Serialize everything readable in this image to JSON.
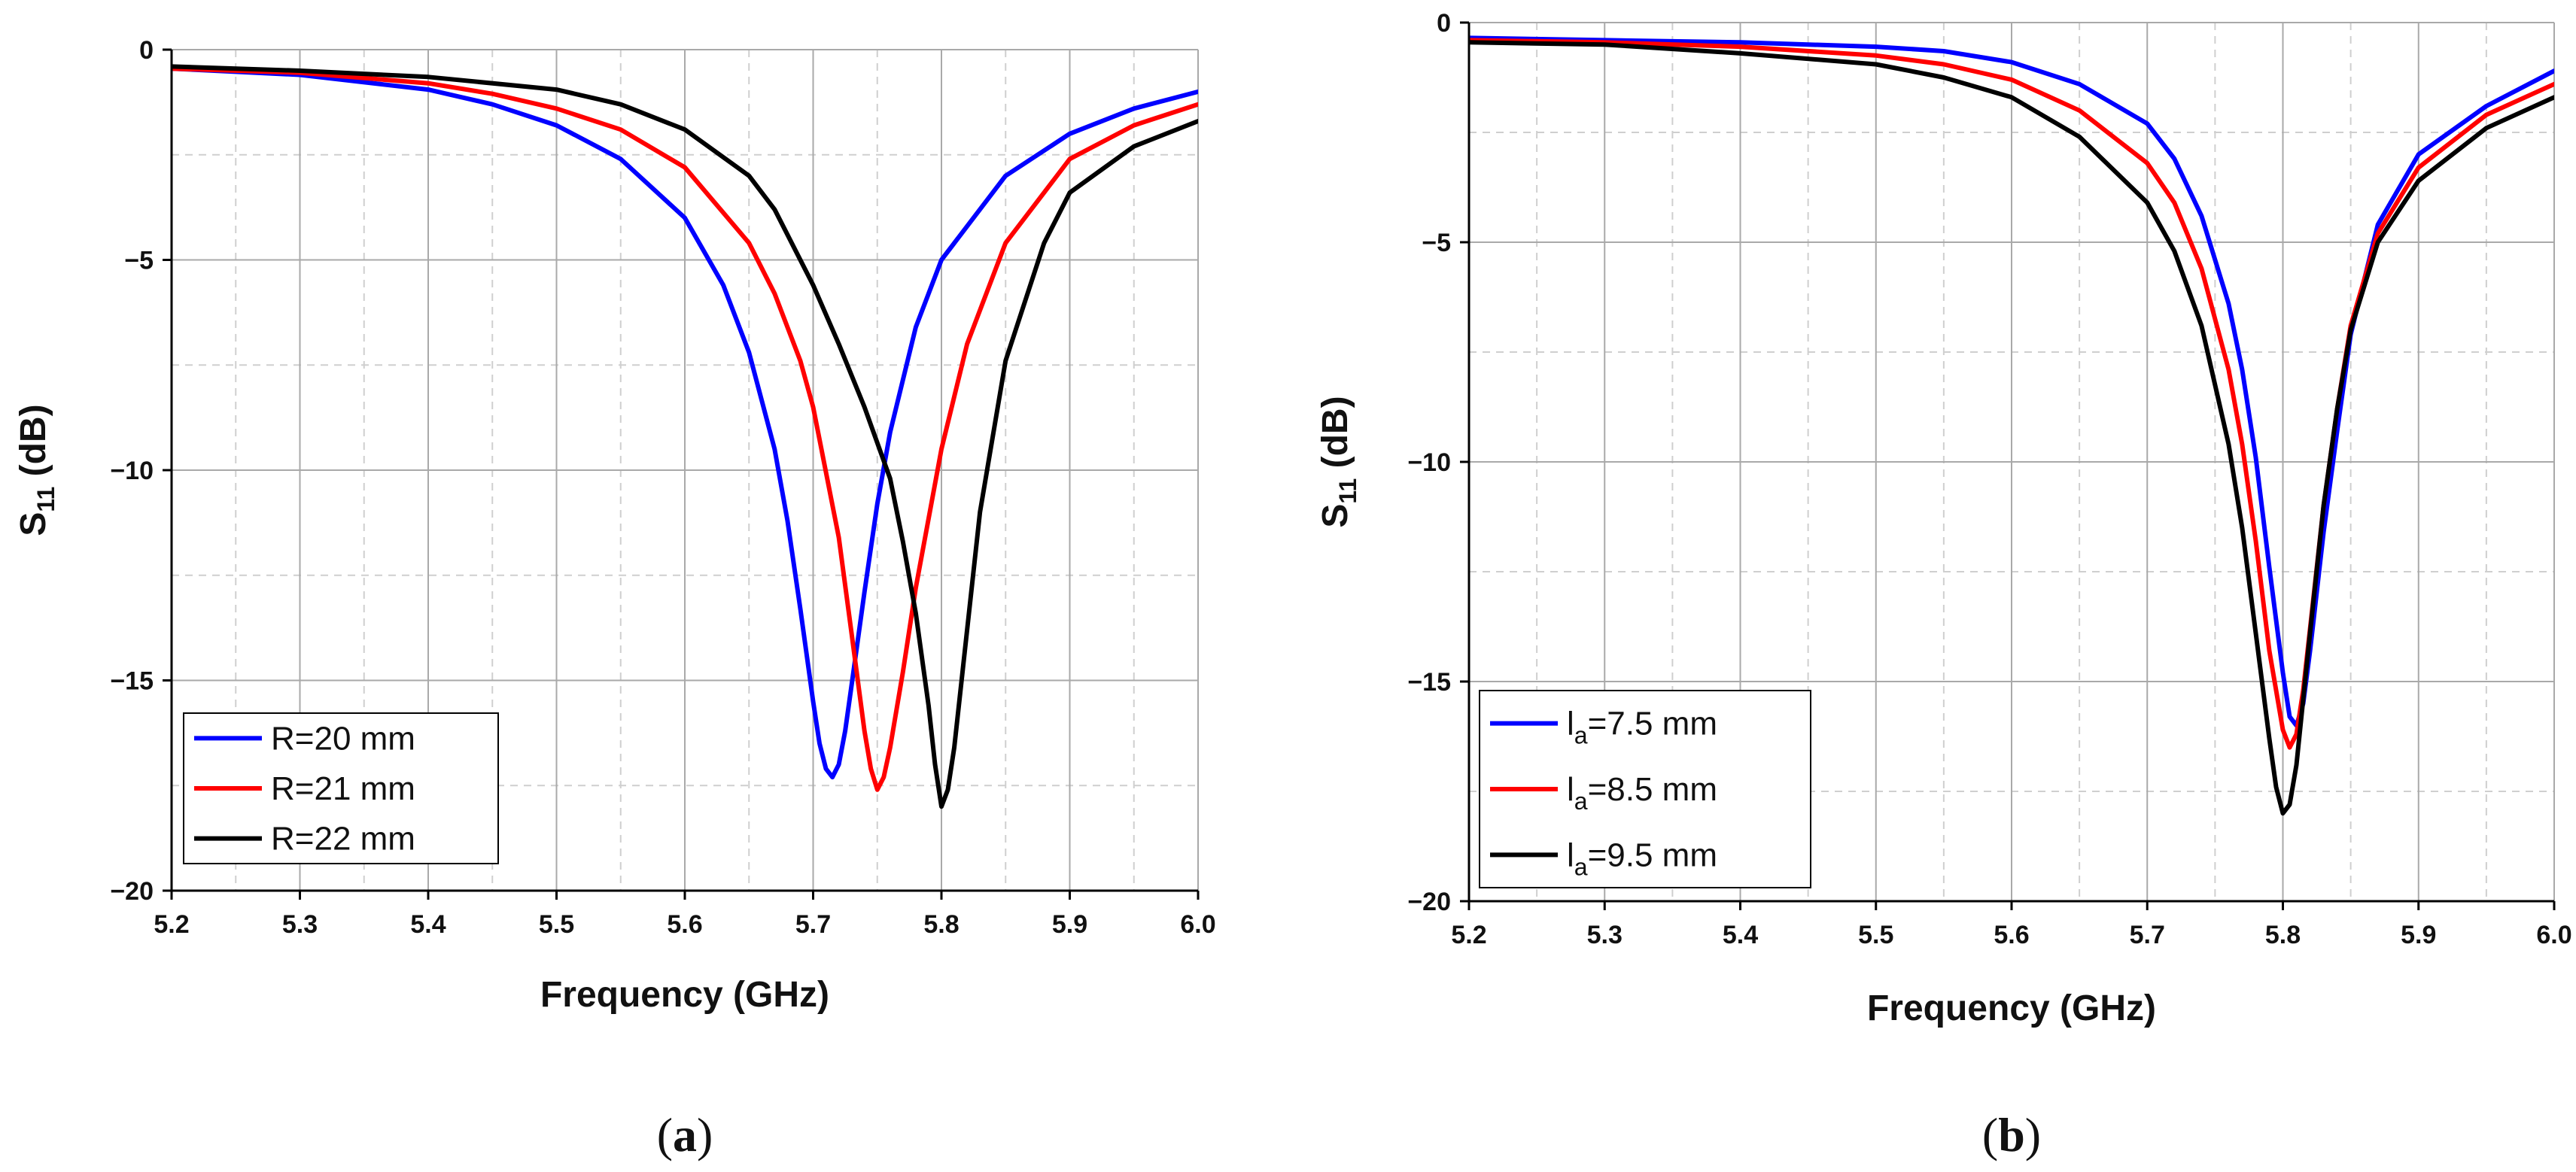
{
  "chart_data": [
    {
      "type": "line",
      "panel_label": "a",
      "title": "",
      "xlabel": "Frequency (GHz)",
      "ylabel": {
        "base": "S",
        "sub": "11",
        "rest": " (dB)"
      },
      "xlim": [
        5.2,
        6.0
      ],
      "ylim": [
        -20,
        0
      ],
      "xticks": [
        5.2,
        5.3,
        5.4,
        5.5,
        5.6,
        5.7,
        5.8,
        5.9,
        6.0
      ],
      "xtick_labels": [
        "5.2",
        "5.3",
        "5.4",
        "5.5",
        "5.6",
        "5.7",
        "5.8",
        "5.9",
        "6.0"
      ],
      "yticks": [
        0,
        -5,
        -10,
        -15,
        -20
      ],
      "ytick_labels": [
        "0",
        "−5",
        "−10",
        "−15",
        "−20"
      ],
      "grid": true,
      "legend_position": "bottom-left",
      "series": [
        {
          "name": "R=20 mm",
          "label": {
            "base": "R=20 mm",
            "sub": "",
            "rest": ""
          },
          "color": "#0000ff",
          "x": [
            5.2,
            5.3,
            5.4,
            5.45,
            5.5,
            5.55,
            5.6,
            5.63,
            5.65,
            5.67,
            5.68,
            5.69,
            5.7,
            5.705,
            5.71,
            5.715,
            5.72,
            5.725,
            5.73,
            5.74,
            5.75,
            5.76,
            5.78,
            5.8,
            5.85,
            5.9,
            5.95,
            6.0
          ],
          "y": [
            -0.45,
            -0.6,
            -0.95,
            -1.3,
            -1.8,
            -2.6,
            -4.0,
            -5.6,
            -7.2,
            -9.5,
            -11.2,
            -13.3,
            -15.5,
            -16.5,
            -17.1,
            -17.3,
            -17.0,
            -16.2,
            -15.1,
            -12.9,
            -10.8,
            -9.1,
            -6.6,
            -5.0,
            -3.0,
            -2.0,
            -1.4,
            -1.0
          ]
        },
        {
          "name": "R=21 mm",
          "label": {
            "base": "R=21 mm",
            "sub": "",
            "rest": ""
          },
          "color": "#ff0000",
          "x": [
            5.2,
            5.3,
            5.4,
            5.45,
            5.5,
            5.55,
            5.6,
            5.65,
            5.67,
            5.69,
            5.7,
            5.72,
            5.73,
            5.74,
            5.745,
            5.75,
            5.755,
            5.76,
            5.77,
            5.78,
            5.8,
            5.82,
            5.85,
            5.9,
            5.95,
            6.0
          ],
          "y": [
            -0.45,
            -0.55,
            -0.8,
            -1.05,
            -1.4,
            -1.9,
            -2.8,
            -4.6,
            -5.8,
            -7.4,
            -8.5,
            -11.6,
            -13.9,
            -16.2,
            -17.1,
            -17.6,
            -17.3,
            -16.6,
            -14.8,
            -12.8,
            -9.5,
            -7.0,
            -4.6,
            -2.6,
            -1.8,
            -1.3
          ]
        },
        {
          "name": "R=22 mm",
          "label": {
            "base": "R=22 mm",
            "sub": "",
            "rest": ""
          },
          "color": "#000000",
          "x": [
            5.2,
            5.3,
            5.4,
            5.5,
            5.55,
            5.6,
            5.65,
            5.67,
            5.7,
            5.72,
            5.74,
            5.76,
            5.77,
            5.78,
            5.79,
            5.795,
            5.8,
            5.805,
            5.81,
            5.82,
            5.83,
            5.85,
            5.88,
            5.9,
            5.95,
            6.0
          ],
          "y": [
            -0.4,
            -0.5,
            -0.65,
            -0.95,
            -1.3,
            -1.9,
            -3.0,
            -3.8,
            -5.6,
            -7.0,
            -8.5,
            -10.2,
            -11.7,
            -13.4,
            -15.6,
            -17.0,
            -18.0,
            -17.6,
            -16.6,
            -13.8,
            -11.0,
            -7.4,
            -4.6,
            -3.4,
            -2.3,
            -1.7
          ]
        }
      ]
    },
    {
      "type": "line",
      "panel_label": "b",
      "title": "",
      "xlabel": "Frequency (GHz)",
      "ylabel": {
        "base": "S",
        "sub": "11",
        "rest": " (dB)"
      },
      "xlim": [
        5.2,
        6.0
      ],
      "ylim": [
        -20,
        0
      ],
      "xticks": [
        5.2,
        5.3,
        5.4,
        5.5,
        5.6,
        5.7,
        5.8,
        5.9,
        6.0
      ],
      "xtick_labels": [
        "5.2",
        "5.3",
        "5.4",
        "5.5",
        "5.6",
        "5.7",
        "5.8",
        "5.9",
        "6.0"
      ],
      "yticks": [
        0,
        -5,
        -10,
        -15,
        -20
      ],
      "ytick_labels": [
        "0",
        "−5",
        "−10",
        "−15",
        "−20"
      ],
      "grid": true,
      "legend_position": "bottom-left",
      "series": [
        {
          "name": "la=7.5 mm",
          "label": {
            "base": "l",
            "sub": "a",
            "rest": "=7.5 mm"
          },
          "color": "#0000ff",
          "x": [
            5.2,
            5.3,
            5.4,
            5.5,
            5.55,
            5.6,
            5.65,
            5.7,
            5.72,
            5.74,
            5.76,
            5.77,
            5.78,
            5.79,
            5.8,
            5.805,
            5.81,
            5.815,
            5.82,
            5.83,
            5.84,
            5.85,
            5.87,
            5.9,
            5.95,
            6.0
          ],
          "y": [
            -0.35,
            -0.4,
            -0.45,
            -0.55,
            -0.65,
            -0.9,
            -1.4,
            -2.3,
            -3.1,
            -4.4,
            -6.4,
            -7.9,
            -9.9,
            -12.4,
            -14.8,
            -15.8,
            -16.0,
            -15.5,
            -14.3,
            -11.6,
            -9.3,
            -7.1,
            -4.6,
            -3.0,
            -1.9,
            -1.1
          ]
        },
        {
          "name": "la=8.5 mm",
          "label": {
            "base": "l",
            "sub": "a",
            "rest": "=8.5 mm"
          },
          "color": "#ff0000",
          "x": [
            5.2,
            5.3,
            5.4,
            5.5,
            5.55,
            5.6,
            5.65,
            5.7,
            5.72,
            5.74,
            5.76,
            5.77,
            5.78,
            5.79,
            5.8,
            5.805,
            5.81,
            5.815,
            5.82,
            5.83,
            5.84,
            5.85,
            5.87,
            5.9,
            5.95,
            6.0
          ],
          "y": [
            -0.4,
            -0.45,
            -0.55,
            -0.75,
            -0.95,
            -1.3,
            -2.0,
            -3.2,
            -4.1,
            -5.6,
            -7.9,
            -9.6,
            -11.8,
            -14.3,
            -16.1,
            -16.5,
            -16.2,
            -15.2,
            -13.8,
            -11.0,
            -8.8,
            -6.9,
            -4.8,
            -3.3,
            -2.1,
            -1.4
          ]
        },
        {
          "name": "la=9.5 mm",
          "label": {
            "base": "l",
            "sub": "a",
            "rest": "=9.5 mm"
          },
          "color": "#000000",
          "x": [
            5.2,
            5.3,
            5.4,
            5.5,
            5.55,
            5.6,
            5.65,
            5.7,
            5.72,
            5.74,
            5.76,
            5.77,
            5.78,
            5.79,
            5.795,
            5.8,
            5.805,
            5.81,
            5.815,
            5.82,
            5.83,
            5.84,
            5.85,
            5.87,
            5.9,
            5.95,
            6.0
          ],
          "y": [
            -0.45,
            -0.5,
            -0.7,
            -0.95,
            -1.25,
            -1.7,
            -2.6,
            -4.1,
            -5.2,
            -6.9,
            -9.6,
            -11.5,
            -13.9,
            -16.3,
            -17.4,
            -18.0,
            -17.8,
            -16.9,
            -15.4,
            -13.9,
            -11.0,
            -8.8,
            -7.0,
            -5.0,
            -3.6,
            -2.4,
            -1.7
          ]
        }
      ]
    }
  ]
}
